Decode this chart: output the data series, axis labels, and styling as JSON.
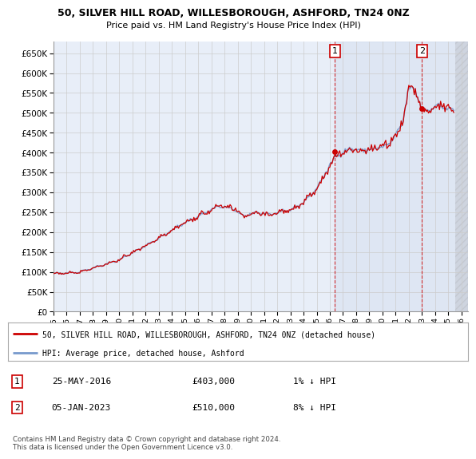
{
  "title_line1": "50, SILVER HILL ROAD, WILLESBOROUGH, ASHFORD, TN24 0NZ",
  "title_line2": "Price paid vs. HM Land Registry's House Price Index (HPI)",
  "ylabel_ticks": [
    0,
    50000,
    100000,
    150000,
    200000,
    250000,
    300000,
    350000,
    400000,
    450000,
    500000,
    550000,
    600000,
    650000
  ],
  "ylim": [
    0,
    680000
  ],
  "xlim_start": 1995.0,
  "xlim_end": 2026.5,
  "xtick_years": [
    1995,
    1996,
    1997,
    1998,
    1999,
    2000,
    2001,
    2002,
    2003,
    2004,
    2005,
    2006,
    2007,
    2008,
    2009,
    2010,
    2011,
    2012,
    2013,
    2014,
    2015,
    2016,
    2017,
    2018,
    2019,
    2020,
    2021,
    2022,
    2023,
    2024,
    2025,
    2026
  ],
  "background_color": "#e8eef8",
  "plot_bg_color": "#e8eef8",
  "grid_color": "#cccccc",
  "hpi_color": "#7799cc",
  "price_color": "#cc0000",
  "marker1_x": 2016.39,
  "marker1_y": 403000,
  "marker2_x": 2023.01,
  "marker2_y": 510000,
  "vline_color": "#cc0000",
  "annotation1_label": "1",
  "annotation1_date": "25-MAY-2016",
  "annotation1_price": "£403,000",
  "annotation1_hpi": "1% ↓ HPI",
  "annotation2_label": "2",
  "annotation2_date": "05-JAN-2023",
  "annotation2_price": "£510,000",
  "annotation2_hpi": "8% ↓ HPI",
  "legend_line1": "50, SILVER HILL ROAD, WILLESBOROUGH, ASHFORD, TN24 0NZ (detached house)",
  "legend_line2": "HPI: Average price, detached house, Ashford",
  "footer": "Contains HM Land Registry data © Crown copyright and database right 2024.\nThis data is licensed under the Open Government Licence v3.0."
}
